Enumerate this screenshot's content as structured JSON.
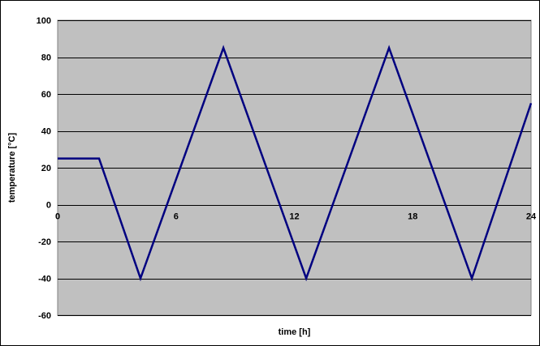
{
  "chart_data": {
    "type": "line",
    "title": "",
    "xlabel": "time [h]",
    "ylabel": "temperature [°C]",
    "xlim": [
      0,
      24
    ],
    "ylim": [
      -60,
      100
    ],
    "x_ticks": [
      0,
      6,
      12,
      18,
      24
    ],
    "y_ticks": [
      -60,
      -40,
      -20,
      0,
      20,
      40,
      60,
      80,
      100
    ],
    "grid": true,
    "plot_background": "#C0C0C0",
    "grid_color": "#000000",
    "legend": false,
    "series": [
      {
        "color": "#000080",
        "x": [
          0,
          2.1,
          4.2,
          8.4,
          12.6,
          16.8,
          21.0,
          24.0
        ],
        "y": [
          25,
          25,
          -40,
          85,
          -40,
          85,
          -40,
          55
        ]
      }
    ]
  }
}
